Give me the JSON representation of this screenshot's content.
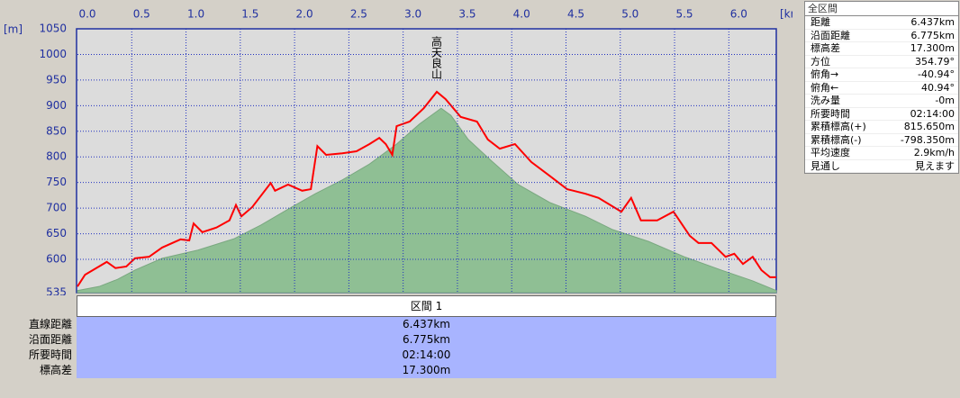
{
  "chart_data": {
    "type": "line",
    "x_unit": "[km]",
    "y_unit": "[m]",
    "annotation": {
      "text": "高天良山",
      "x": 3.31
    },
    "xlim": [
      0,
      6.437
    ],
    "ylim": [
      535,
      1050
    ],
    "xticks": [
      {
        "value": 0,
        "label": "0.0"
      },
      0.5,
      {
        "value": 1,
        "label": "1.0"
      },
      1.5,
      {
        "value": 2,
        "label": "2.0"
      },
      2.5,
      {
        "value": 3,
        "label": "3.0"
      },
      3.5,
      {
        "value": 4,
        "label": "4.0"
      },
      4.5,
      {
        "value": 5,
        "label": "5.0"
      },
      5.5,
      {
        "value": 6,
        "label": "6.0"
      }
    ],
    "yticks": [
      535,
      600,
      650,
      700,
      750,
      800,
      850,
      900,
      950,
      1000,
      1050
    ],
    "grid": true,
    "series": [
      {
        "style": "area",
        "color": "#8fbf94",
        "x": [
          0,
          0.2,
          0.37,
          0.53,
          0.78,
          1.11,
          1.44,
          1.69,
          1.94,
          2.19,
          2.44,
          2.69,
          2.94,
          3.15,
          3.35,
          3.44,
          3.6,
          3.81,
          4.06,
          4.35,
          4.68,
          4.93,
          5.26,
          5.59,
          5.93,
          6.22,
          6.437
        ],
        "values": [
          539,
          547,
          561,
          579,
          602,
          618,
          640,
          667,
          698,
          728,
          755,
          786,
          825,
          864,
          895,
          881,
          834,
          793,
          746,
          711,
          684,
          658,
          635,
          605,
          579,
          558,
          539
        ]
      },
      {
        "style": "line",
        "color": "#ff0000",
        "x": [
          0,
          0.07,
          0.27,
          0.35,
          0.45,
          0.53,
          0.66,
          0.78,
          0.95,
          1.03,
          1.07,
          1.15,
          1.28,
          1.4,
          1.46,
          1.51,
          1.61,
          1.78,
          1.82,
          1.94,
          2.07,
          2.15,
          2.21,
          2.29,
          2.44,
          2.57,
          2.69,
          2.78,
          2.84,
          2.9,
          2.94,
          3.06,
          3.19,
          3.31,
          3.39,
          3.53,
          3.68,
          3.78,
          3.89,
          4.03,
          4.18,
          4.35,
          4.51,
          4.68,
          4.8,
          5.01,
          5.1,
          5.19,
          5.34,
          5.49,
          5.64,
          5.72,
          5.84,
          5.97,
          6.05,
          6.13,
          6.22,
          6.3,
          6.38,
          6.437
        ],
        "values": [
          547,
          570,
          595,
          583,
          586,
          602,
          605,
          623,
          639,
          637,
          670,
          653,
          662,
          676,
          706,
          684,
          702,
          749,
          734,
          746,
          734,
          737,
          821,
          804,
          807,
          811,
          825,
          837,
          825,
          804,
          860,
          869,
          895,
          927,
          913,
          878,
          869,
          834,
          816,
          825,
          790,
          763,
          737,
          728,
          720,
          693,
          720,
          676,
          676,
          693,
          646,
          632,
          632,
          605,
          611,
          591,
          605,
          579,
          565,
          565
        ]
      }
    ]
  },
  "info_panel": {
    "title": "全区間",
    "rows": [
      [
        "距離",
        "6.437km"
      ],
      [
        "沿面距離",
        "6.775km"
      ],
      [
        "標高差",
        "17.300m"
      ],
      [
        "方位",
        "354.79°"
      ],
      [
        "俯角→",
        "-40.94°"
      ],
      [
        "俯角←",
        "40.94°"
      ],
      [
        "洗み量",
        "-0m"
      ],
      [
        "所要時間",
        "02:14:00"
      ],
      [
        "累積標高(+)",
        "815.650m"
      ],
      [
        "累積標高(-)",
        "-798.350m"
      ],
      [
        "平均速度",
        "2.9km/h"
      ],
      [
        "見通し",
        "見えます"
      ]
    ]
  },
  "section_table": {
    "header": "区間 1",
    "rows": [
      [
        "直線距離",
        "6.437km"
      ],
      [
        "沿面距離",
        "6.775km"
      ],
      [
        "所要時間",
        "02:14:00"
      ],
      [
        "標高差",
        "17.300m"
      ]
    ]
  }
}
